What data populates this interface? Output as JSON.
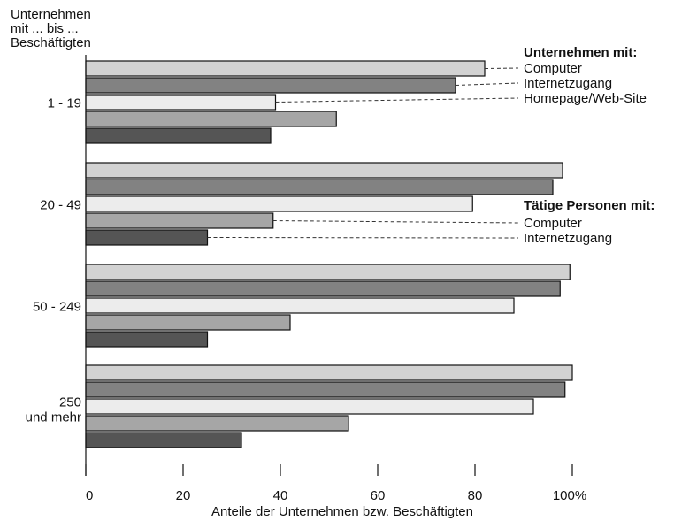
{
  "chart_data": {
    "type": "bar",
    "orientation": "horizontal",
    "y_title_lines": [
      "Unternehmen",
      "mit ... bis ...",
      "Beschäftigten"
    ],
    "xlabel": "Anteile der Unternehmen bzw. Beschäftigten",
    "xlim": [
      0,
      100
    ],
    "x_ticks": [
      "0",
      "20",
      "40",
      "60",
      "80",
      "100%"
    ],
    "grid": false,
    "categories": [
      {
        "label_lines": [
          "1 - 19"
        ]
      },
      {
        "label_lines": [
          "20 - 49"
        ]
      },
      {
        "label_lines": [
          "50 - 249"
        ]
      },
      {
        "label_lines": [
          "250",
          "und mehr"
        ]
      }
    ],
    "series": [
      {
        "name": "Computer",
        "group": "Unternehmen mit:",
        "color": "#d2d2d2",
        "values": [
          82,
          98,
          99.5,
          100
        ]
      },
      {
        "name": "Internetzugang",
        "group": "Unternehmen mit:",
        "color": "#828282",
        "values": [
          76,
          96,
          97.5,
          98.5
        ]
      },
      {
        "name": "Homepage/Web-Site",
        "group": "Unternehmen mit:",
        "color": "#ececec",
        "values": [
          39,
          79.5,
          88,
          92
        ]
      },
      {
        "name": "Computer",
        "group": "Tätige Personen mit:",
        "color": "#a6a6a6",
        "values": [
          51.5,
          38.5,
          42,
          54
        ]
      },
      {
        "name": "Internetzugang",
        "group": "Tätige Personen mit:",
        "color": "#555555",
        "values": [
          38,
          25,
          25,
          32
        ]
      }
    ],
    "legend": {
      "placement": "right",
      "groups": [
        {
          "title": "Unternehmen mit:",
          "entries": [
            "Computer",
            "Internetzugang",
            "Homepage/Web-Site"
          ]
        },
        {
          "title": "Tätige Personen mit:",
          "entries": [
            "Computer",
            "Internetzugang"
          ]
        }
      ]
    }
  }
}
